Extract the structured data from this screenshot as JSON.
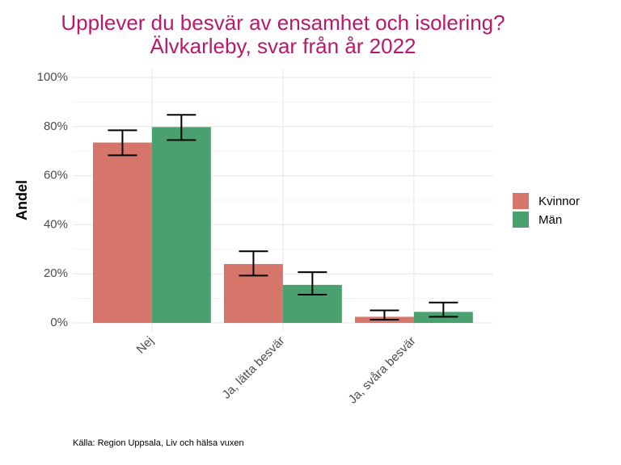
{
  "chart_data": {
    "type": "bar",
    "title": [
      "Upplever du besvär av ensamhet och isolering?",
      "Älvkarleby, svar från år 2022"
    ],
    "y_label": "Andel",
    "caption": "Källa: Region Uppsala, Liv och hälsa vuxen",
    "categories": [
      "Nej",
      "Ja, lätta besvär",
      "Ja, svåra besvär"
    ],
    "series": [
      {
        "name": "Kvinnor",
        "color": "#d6766a",
        "values": [
          73.5,
          24,
          2.5
        ],
        "lower": [
          68.3,
          19.3,
          1.3
        ],
        "upper": [
          78.5,
          29.2,
          5.1
        ]
      },
      {
        "name": "Män",
        "color": "#4aa06e",
        "values": [
          79.8,
          15.5,
          4.5
        ],
        "lower": [
          74.5,
          11.5,
          2.5
        ],
        "upper": [
          84.8,
          20.7,
          8.3
        ]
      }
    ],
    "ylim": [
      0,
      100
    ],
    "yticks": [
      {
        "value": 0,
        "label": "0%"
      },
      {
        "value": 20,
        "label": "20%"
      },
      {
        "value": 40,
        "label": "40%"
      },
      {
        "value": 60,
        "label": "60%"
      },
      {
        "value": 80,
        "label": "80%"
      },
      {
        "value": 100,
        "label": "100%"
      }
    ],
    "grid": true,
    "legend": "right"
  }
}
